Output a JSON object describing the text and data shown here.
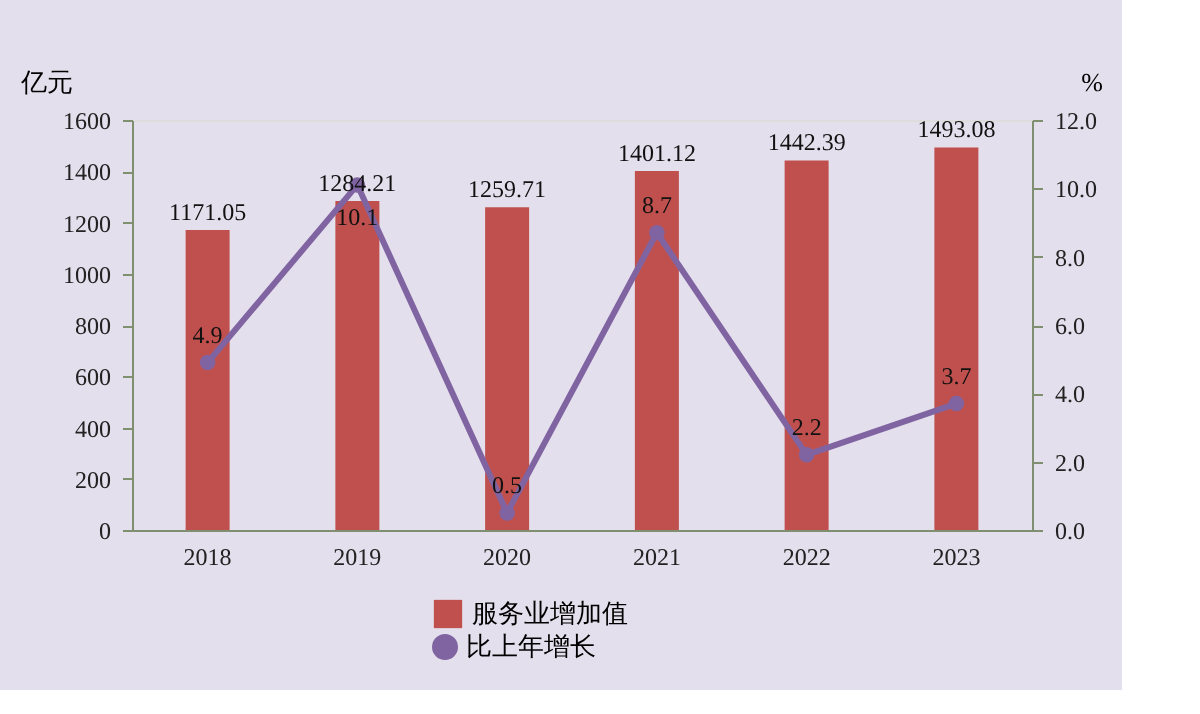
{
  "chart_data": {
    "type": "bar",
    "categories": [
      "2018",
      "2019",
      "2020",
      "2021",
      "2022",
      "2023"
    ],
    "ylabel": "亿元",
    "y2label": "%",
    "series": [
      {
        "name": "服务业增加值",
        "color": "#c0504d",
        "values": [
          1171.05,
          1284.21,
          1259.71,
          1401.12,
          1442.39,
          1493.08
        ]
      },
      {
        "name": "比上年增长",
        "type": "line",
        "axis": "y2",
        "color": "#8064a2",
        "marker": "circle",
        "values": [
          4.9,
          10.1,
          0.5,
          8.7,
          2.2,
          3.7
        ]
      }
    ],
    "ylim": [
      0,
      1600
    ],
    "yticks": [
      0,
      200,
      400,
      600,
      800,
      1000,
      1200,
      1400,
      1600
    ],
    "y2lim": [
      0,
      12
    ],
    "y2ticks": [
      {
        "value": 0,
        "label": "0.0"
      },
      {
        "value": 2,
        "label": "2.0"
      },
      {
        "value": 4,
        "label": "4.0"
      },
      {
        "value": 6,
        "label": "6.0"
      },
      {
        "value": 8,
        "label": "8.0"
      },
      {
        "value": 10,
        "label": "10.0"
      },
      {
        "value": 12,
        "label": "12.0"
      }
    ],
    "data_labels": true,
    "grid": false,
    "legend": "bottom"
  }
}
